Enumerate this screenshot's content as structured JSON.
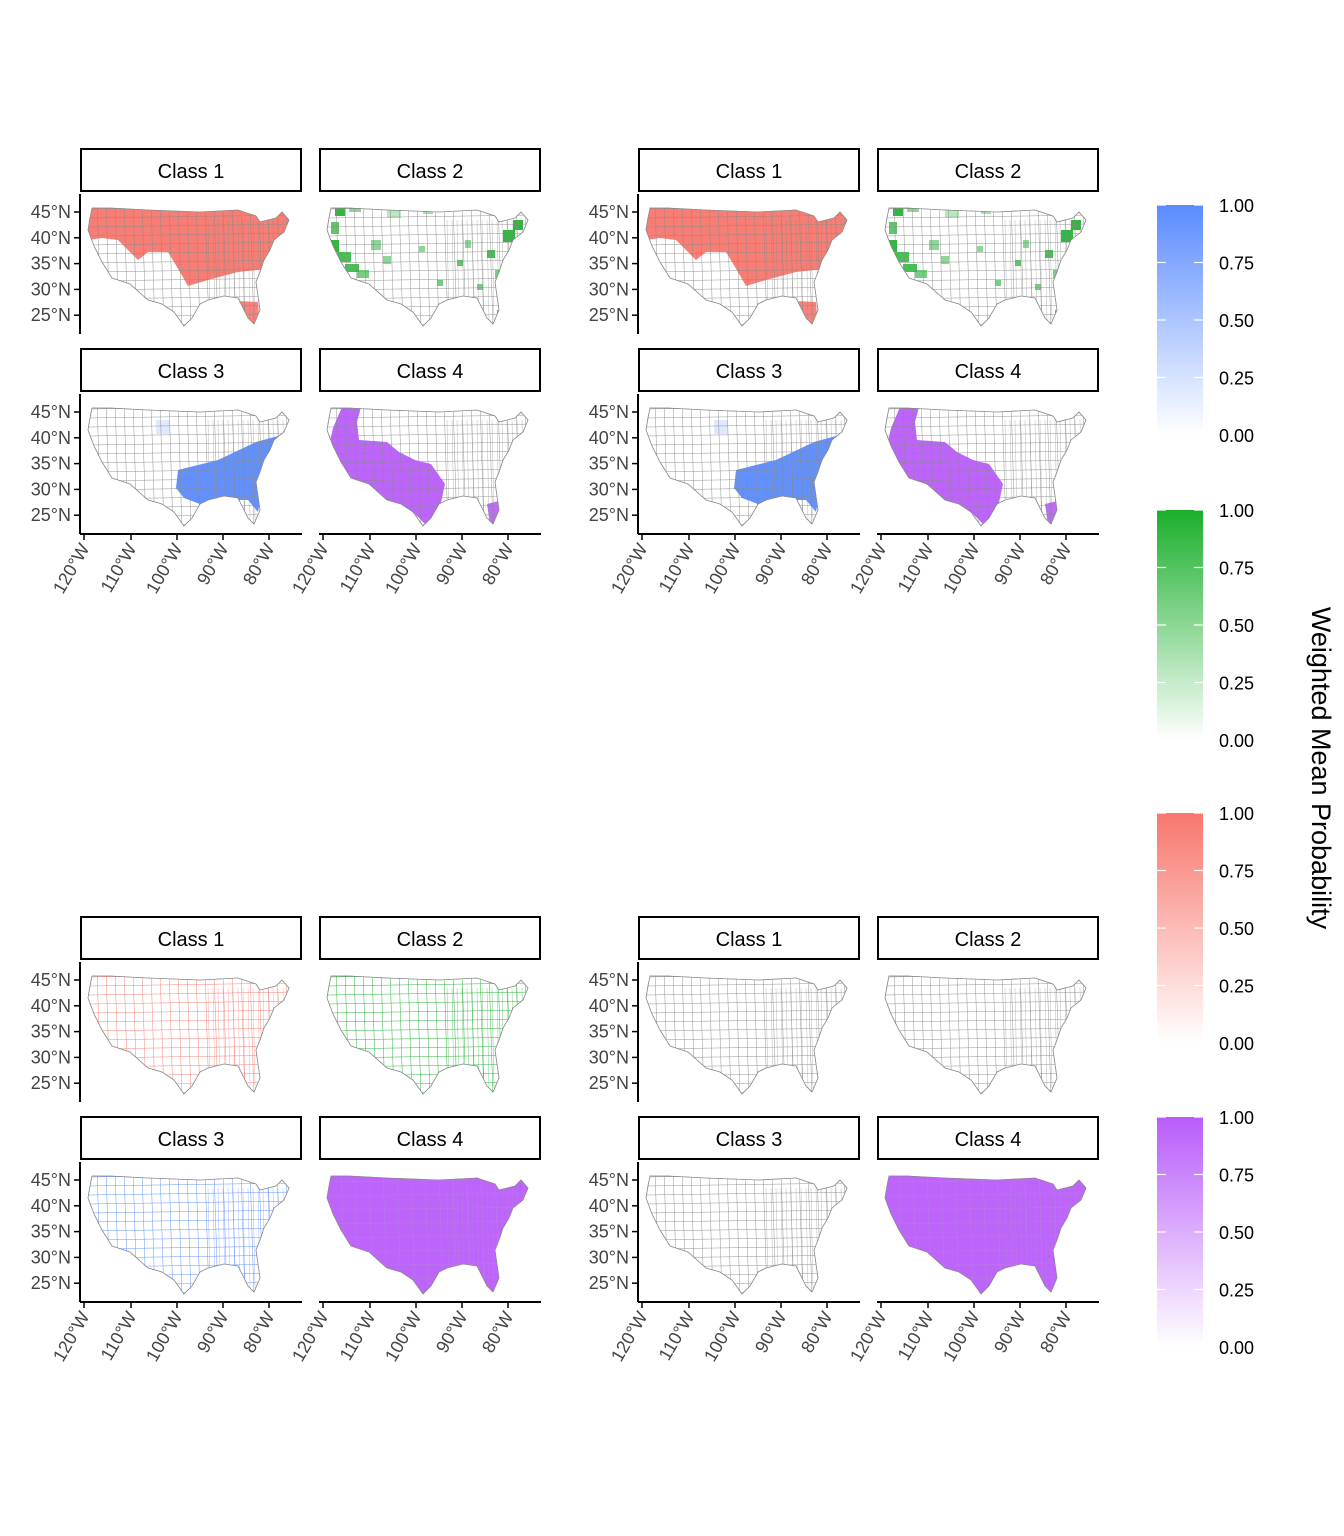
{
  "legend_title": "Weighted Mean Probability",
  "colors": {
    "class1": "#f8766d",
    "class2": "#1aaf2b",
    "class3": "#5a8bff",
    "class4": "#b95cfa"
  },
  "lat_ticks": [
    "45°N",
    "40°N",
    "35°N",
    "30°N",
    "25°N"
  ],
  "lon_ticks": [
    "120°W",
    "110°W",
    "100°W",
    "90°W",
    "80°W"
  ],
  "legends": [
    {
      "class": "class3",
      "ticks": [
        "1.00",
        "0.75",
        "0.50",
        "0.25",
        "0.00"
      ]
    },
    {
      "class": "class2",
      "ticks": [
        "1.00",
        "0.75",
        "0.50",
        "0.25",
        "0.00"
      ]
    },
    {
      "class": "class1",
      "ticks": [
        "1.00",
        "0.75",
        "0.50",
        "0.25",
        "0.00"
      ]
    },
    {
      "class": "class4",
      "ticks": [
        "1.00",
        "0.75",
        "0.50",
        "0.25",
        "0.00"
      ]
    }
  ],
  "panels": [
    {
      "facets": [
        {
          "label": "Class 1",
          "class": "class1",
          "fill": "north"
        },
        {
          "label": "Class 2",
          "class": "class2",
          "fill": "scattered"
        },
        {
          "label": "Class 3",
          "class": "class3",
          "fill": "southeast"
        },
        {
          "label": "Class 4",
          "class": "class4",
          "fill": "southwest"
        }
      ]
    },
    {
      "facets": [
        {
          "label": "Class 1",
          "class": "class1",
          "fill": "north"
        },
        {
          "label": "Class 2",
          "class": "class2",
          "fill": "scattered"
        },
        {
          "label": "Class 3",
          "class": "class3",
          "fill": "southeast"
        },
        {
          "label": "Class 4",
          "class": "class4",
          "fill": "southwest"
        }
      ]
    },
    {
      "facets": [
        {
          "label": "Class 1",
          "class": "class1",
          "fill": "outline"
        },
        {
          "label": "Class 2",
          "class": "class2",
          "fill": "outline"
        },
        {
          "label": "Class 3",
          "class": "class3",
          "fill": "outline"
        },
        {
          "label": "Class 4",
          "class": "class4",
          "fill": "full"
        }
      ]
    },
    {
      "facets": [
        {
          "label": "Class 1",
          "class": "class1",
          "fill": "none"
        },
        {
          "label": "Class 2",
          "class": "class2",
          "fill": "none"
        },
        {
          "label": "Class 3",
          "class": "class3",
          "fill": "none"
        },
        {
          "label": "Class 4",
          "class": "class4",
          "fill": "full"
        }
      ]
    }
  ]
}
